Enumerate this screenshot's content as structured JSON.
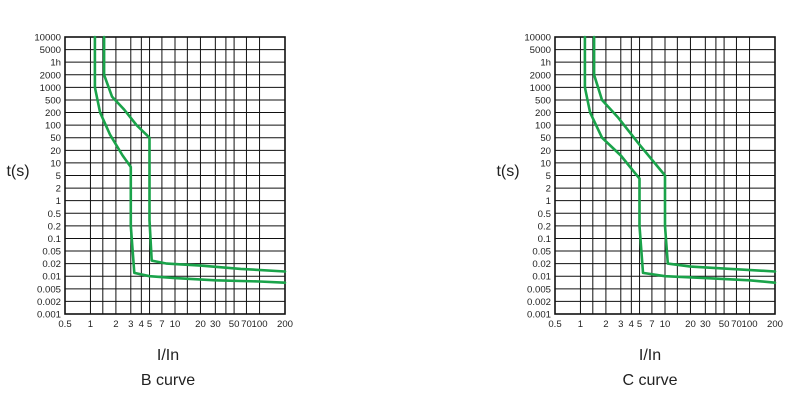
{
  "page": {
    "background": "#ffffff"
  },
  "style": {
    "curve_color": "#1aa34a",
    "grid_color": "#111111",
    "text_color": "#222222"
  },
  "chart_data": [
    {
      "type": "line",
      "ylabel": "t(s)",
      "xlabel": "I/In",
      "caption": "B curve",
      "x_scale": "log",
      "y_scale": "log",
      "grid": true,
      "xlim": [
        0.5,
        200
      ],
      "ylim": [
        0.001,
        10000
      ],
      "x_ticks": [
        {
          "v": 0.5,
          "label": "0.5"
        },
        {
          "v": 1,
          "label": "1"
        },
        {
          "v": 2,
          "label": "2"
        },
        {
          "v": 3,
          "label": "3"
        },
        {
          "v": 4,
          "label": "4"
        },
        {
          "v": 5,
          "label": "5"
        },
        {
          "v": 7,
          "label": "7"
        },
        {
          "v": 10,
          "label": "10"
        },
        {
          "v": 20,
          "label": "20"
        },
        {
          "v": 30,
          "label": "30"
        },
        {
          "v": 50,
          "label": "50"
        },
        {
          "v": 70,
          "label": "70"
        },
        {
          "v": 100,
          "label": "100"
        },
        {
          "v": 200,
          "label": "200"
        }
      ],
      "x_grid": [
        1,
        1.4,
        2,
        3,
        4,
        5,
        7,
        10,
        14,
        20,
        30,
        40,
        50,
        70,
        100
      ],
      "y_ticks": [
        {
          "v": 10000,
          "label": "10000"
        },
        {
          "v": 5000,
          "label": "5000"
        },
        {
          "v": 3600,
          "label": "1h"
        },
        {
          "v": 2000,
          "label": "2000"
        },
        {
          "v": 1000,
          "label": "1000"
        },
        {
          "v": 500,
          "label": "500"
        },
        {
          "v": 200,
          "label": "200"
        },
        {
          "v": 100,
          "label": "100"
        },
        {
          "v": 50,
          "label": "50"
        },
        {
          "v": 20,
          "label": "20"
        },
        {
          "v": 10,
          "label": "10"
        },
        {
          "v": 5,
          "label": "5"
        },
        {
          "v": 2,
          "label": "2"
        },
        {
          "v": 1,
          "label": "1"
        },
        {
          "v": 0.5,
          "label": "0.5"
        },
        {
          "v": 0.2,
          "label": "0.2"
        },
        {
          "v": 0.1,
          "label": "0.1"
        },
        {
          "v": 0.05,
          "label": "0.05"
        },
        {
          "v": 0.02,
          "label": "0.02"
        },
        {
          "v": 0.01,
          "label": "0.01"
        },
        {
          "v": 0.005,
          "label": "0.005"
        },
        {
          "v": 0.002,
          "label": "0.002"
        },
        {
          "v": 0.001,
          "label": "0.001"
        }
      ],
      "series": [
        {
          "x": [
            1.13,
            1.13,
            1.3,
            1.7,
            2.4,
            3.0,
            3.0,
            3.3,
            5,
            10,
            30,
            100,
            200
          ],
          "y": [
            10000,
            1000,
            200,
            60,
            15,
            8,
            0.2,
            0.012,
            0.01,
            0.009,
            0.008,
            0.0075,
            0.007
          ]
        },
        {
          "x": [
            1.45,
            1.45,
            1.8,
            2.5,
            3.5,
            5,
            5,
            5.3,
            8,
            20,
            60,
            200
          ],
          "y": [
            10000,
            2000,
            600,
            250,
            100,
            50,
            0.3,
            0.025,
            0.02,
            0.018,
            0.015,
            0.013
          ]
        }
      ]
    },
    {
      "type": "line",
      "ylabel": "t(s)",
      "xlabel": "I/In",
      "caption": "C curve",
      "x_scale": "log",
      "y_scale": "log",
      "grid": true,
      "xlim": [
        0.5,
        200
      ],
      "ylim": [
        0.001,
        10000
      ],
      "x_ticks": [
        {
          "v": 0.5,
          "label": "0.5"
        },
        {
          "v": 1,
          "label": "1"
        },
        {
          "v": 2,
          "label": "2"
        },
        {
          "v": 3,
          "label": "3"
        },
        {
          "v": 4,
          "label": "4"
        },
        {
          "v": 5,
          "label": "5"
        },
        {
          "v": 7,
          "label": "7"
        },
        {
          "v": 10,
          "label": "10"
        },
        {
          "v": 20,
          "label": "20"
        },
        {
          "v": 30,
          "label": "30"
        },
        {
          "v": 50,
          "label": "50"
        },
        {
          "v": 70,
          "label": "70"
        },
        {
          "v": 100,
          "label": "100"
        },
        {
          "v": 200,
          "label": "200"
        }
      ],
      "x_grid": [
        1,
        1.4,
        2,
        3,
        4,
        5,
        7,
        10,
        14,
        20,
        30,
        40,
        50,
        70,
        100
      ],
      "y_ticks": [
        {
          "v": 10000,
          "label": "10000"
        },
        {
          "v": 5000,
          "label": "5000"
        },
        {
          "v": 3600,
          "label": "1h"
        },
        {
          "v": 2000,
          "label": "2000"
        },
        {
          "v": 1000,
          "label": "1000"
        },
        {
          "v": 500,
          "label": "500"
        },
        {
          "v": 200,
          "label": "200"
        },
        {
          "v": 100,
          "label": "100"
        },
        {
          "v": 50,
          "label": "50"
        },
        {
          "v": 20,
          "label": "20"
        },
        {
          "v": 10,
          "label": "10"
        },
        {
          "v": 5,
          "label": "5"
        },
        {
          "v": 2,
          "label": "2"
        },
        {
          "v": 1,
          "label": "1"
        },
        {
          "v": 0.5,
          "label": "0.5"
        },
        {
          "v": 0.2,
          "label": "0.2"
        },
        {
          "v": 0.1,
          "label": "0.1"
        },
        {
          "v": 0.05,
          "label": "0.05"
        },
        {
          "v": 0.02,
          "label": "0.02"
        },
        {
          "v": 0.01,
          "label": "0.01"
        },
        {
          "v": 0.005,
          "label": "0.005"
        },
        {
          "v": 0.002,
          "label": "0.002"
        },
        {
          "v": 0.001,
          "label": "0.001"
        }
      ],
      "series": [
        {
          "x": [
            1.13,
            1.13,
            1.3,
            1.8,
            3,
            5,
            5,
            5.5,
            10,
            30,
            100,
            200
          ],
          "y": [
            10000,
            1000,
            200,
            50,
            15,
            4,
            0.2,
            0.012,
            0.01,
            0.009,
            0.008,
            0.007
          ]
        },
        {
          "x": [
            1.45,
            1.45,
            1.8,
            2.8,
            5,
            10,
            10,
            10.8,
            20,
            60,
            200
          ],
          "y": [
            10000,
            2000,
            500,
            150,
            30,
            5,
            0.2,
            0.02,
            0.017,
            0.015,
            0.013
          ]
        }
      ]
    }
  ]
}
